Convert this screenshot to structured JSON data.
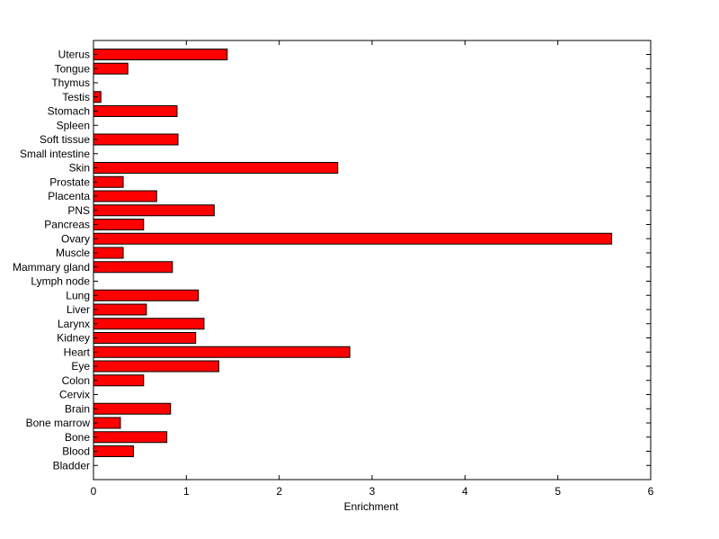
{
  "chart_data": {
    "type": "bar",
    "orientation": "horizontal",
    "title": "",
    "xlabel": "Enrichment",
    "ylabel": "",
    "xlim": [
      0,
      6
    ],
    "xticks": [
      0,
      1,
      2,
      3,
      4,
      5,
      6
    ],
    "grid": false,
    "bar_color": "#ff0000",
    "categories": [
      "Uterus",
      "Tongue",
      "Thymus",
      "Testis",
      "Stomach",
      "Spleen",
      "Soft tissue",
      "Small intestine",
      "Skin",
      "Prostate",
      "Placenta",
      "PNS",
      "Pancreas",
      "Ovary",
      "Muscle",
      "Mammary gland",
      "Lymph node",
      "Lung",
      "Liver",
      "Larynx",
      "Kidney",
      "Heart",
      "Eye",
      "Colon",
      "Cervix",
      "Brain",
      "Bone marrow",
      "Bone",
      "Blood",
      "Bladder"
    ],
    "values": [
      1.44,
      0.37,
      0,
      0.08,
      0.9,
      0,
      0.91,
      0,
      2.63,
      0.32,
      0.68,
      1.3,
      0.54,
      5.58,
      0.32,
      0.85,
      0,
      1.13,
      0.57,
      1.19,
      1.1,
      2.76,
      1.35,
      0.54,
      0,
      0.83,
      0.29,
      0.79,
      0.43,
      0
    ]
  }
}
